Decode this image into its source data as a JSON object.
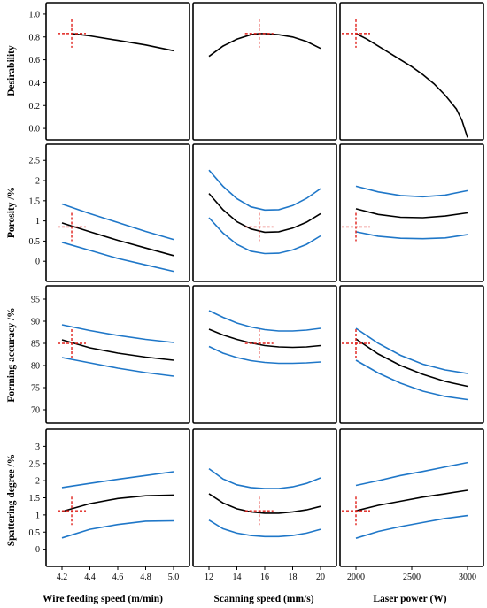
{
  "figure": {
    "x_titles": [
      "Wire feeding speed (m/min)",
      "Scanning speed (mm/s)",
      "Laser power (W)"
    ],
    "y_titles": [
      "Desirability",
      "Porosity /%",
      "Forming accuracy /%",
      "Spattering degree /%"
    ]
  },
  "chart_data": {
    "type": "line",
    "grid": false,
    "colors": {
      "fit": "#000000",
      "interval": "#1f77c8",
      "optimum": "#e0201b"
    },
    "columns": [
      {
        "xlabel": "Wire feeding speed (m/min)",
        "xlim": [
          4.2,
          5.0
        ],
        "xticks": [
          4.2,
          4.4,
          4.6,
          4.8,
          5.0
        ],
        "xtick_labels": [
          "4.2",
          "4.4",
          "4.6",
          "4.8",
          "5.0"
        ],
        "optimum_x": 4.27
      },
      {
        "xlabel": "Scanning speed (mm/s)",
        "xlim": [
          12,
          20
        ],
        "xticks": [
          12,
          14,
          16,
          18,
          20
        ],
        "xtick_labels": [
          "12",
          "14",
          "16",
          "18",
          "20"
        ],
        "optimum_x": 15.6
      },
      {
        "xlabel": "Laser power (W)",
        "xlim": [
          2000,
          3000
        ],
        "xticks": [
          2000,
          2500,
          3000
        ],
        "xtick_labels": [
          "2000",
          "2500",
          "3000"
        ],
        "optimum_x": 2000
      }
    ],
    "rows": [
      {
        "ylabel": "Desirability",
        "ylim": [
          -0.1,
          1.1
        ],
        "yticks": [
          0.0,
          0.2,
          0.4,
          0.6,
          0.8,
          1.0
        ],
        "ytick_labels": [
          "0.0",
          "0.2",
          "0.4",
          "0.6",
          "0.8",
          "1.0"
        ],
        "optimum_y": 0.83,
        "panels": [
          {
            "fit": {
              "x": [
                4.27,
                4.4,
                4.6,
                4.8,
                5.0
              ],
              "y": [
                0.83,
                0.81,
                0.77,
                0.73,
                0.68
              ]
            }
          },
          {
            "fit": {
              "x": [
                12,
                13,
                14,
                15,
                15.6,
                16,
                17,
                18,
                19,
                20
              ],
              "y": [
                0.63,
                0.72,
                0.78,
                0.82,
                0.83,
                0.83,
                0.82,
                0.8,
                0.76,
                0.7
              ]
            }
          },
          {
            "fit": {
              "x": [
                2000,
                2100,
                2200,
                2300,
                2400,
                2500,
                2600,
                2700,
                2800,
                2900,
                2950,
                3000
              ],
              "y": [
                0.83,
                0.78,
                0.72,
                0.66,
                0.6,
                0.54,
                0.47,
                0.39,
                0.29,
                0.17,
                0.07,
                -0.08
              ]
            }
          }
        ]
      },
      {
        "ylabel": "Porosity /%",
        "ylim": [
          -0.5,
          2.9
        ],
        "yticks": [
          0,
          0.5,
          1,
          1.5,
          2,
          2.5
        ],
        "ytick_labels": [
          "0",
          "0.5",
          "1",
          "1.5",
          "2",
          "2.5"
        ],
        "optimum_y": 0.85,
        "panels": [
          {
            "fit": {
              "x": [
                4.2,
                4.4,
                4.6,
                4.8,
                5.0
              ],
              "y": [
                0.95,
                0.73,
                0.52,
                0.33,
                0.14
              ]
            },
            "upper": {
              "x": [
                4.2,
                4.4,
                4.6,
                4.8,
                5.0
              ],
              "y": [
                1.42,
                1.18,
                0.96,
                0.74,
                0.54
              ]
            },
            "lower": {
              "x": [
                4.2,
                4.4,
                4.6,
                4.8,
                5.0
              ],
              "y": [
                0.47,
                0.27,
                0.07,
                -0.09,
                -0.25
              ]
            }
          },
          {
            "fit": {
              "x": [
                12,
                13,
                14,
                15,
                16,
                17,
                18,
                19,
                20
              ],
              "y": [
                1.68,
                1.28,
                0.98,
                0.8,
                0.72,
                0.73,
                0.82,
                0.97,
                1.18
              ]
            },
            "upper": {
              "x": [
                12,
                13,
                14,
                15,
                16,
                17,
                18,
                19,
                20
              ],
              "y": [
                2.26,
                1.86,
                1.55,
                1.35,
                1.27,
                1.28,
                1.38,
                1.56,
                1.8
              ]
            },
            "lower": {
              "x": [
                12,
                13,
                14,
                15,
                16,
                17,
                18,
                19,
                20
              ],
              "y": [
                1.08,
                0.7,
                0.42,
                0.25,
                0.19,
                0.2,
                0.28,
                0.42,
                0.63
              ]
            }
          },
          {
            "fit": {
              "x": [
                2000,
                2200,
                2400,
                2600,
                2800,
                3000
              ],
              "y": [
                1.3,
                1.16,
                1.09,
                1.08,
                1.12,
                1.2
              ]
            },
            "upper": {
              "x": [
                2000,
                2200,
                2400,
                2600,
                2800,
                3000
              ],
              "y": [
                1.86,
                1.72,
                1.63,
                1.6,
                1.64,
                1.75
              ]
            },
            "lower": {
              "x": [
                2000,
                2200,
                2400,
                2600,
                2800,
                3000
              ],
              "y": [
                0.73,
                0.62,
                0.57,
                0.56,
                0.58,
                0.66
              ]
            }
          }
        ]
      },
      {
        "ylabel": "Forming accuracy /%",
        "ylim": [
          67,
          98
        ],
        "yticks": [
          70,
          75,
          80,
          85,
          90,
          95
        ],
        "ytick_labels": [
          "70",
          "75",
          "80",
          "85",
          "90",
          "95"
        ],
        "optimum_y": 85,
        "panels": [
          {
            "fit": {
              "x": [
                4.2,
                4.4,
                4.6,
                4.8,
                5.0
              ],
              "y": [
                85.8,
                84.0,
                82.8,
                81.9,
                81.2
              ]
            },
            "upper": {
              "x": [
                4.2,
                4.4,
                4.6,
                4.8,
                5.0
              ],
              "y": [
                89.2,
                87.9,
                86.8,
                85.9,
                85.2
              ]
            },
            "lower": {
              "x": [
                4.2,
                4.4,
                4.6,
                4.8,
                5.0
              ],
              "y": [
                81.8,
                80.6,
                79.4,
                78.4,
                77.6
              ]
            }
          },
          {
            "fit": {
              "x": [
                12,
                13,
                14,
                15,
                16,
                17,
                18,
                19,
                20
              ],
              "y": [
                88.2,
                86.9,
                85.9,
                85.1,
                84.5,
                84.2,
                84.1,
                84.2,
                84.5
              ]
            },
            "upper": {
              "x": [
                12,
                13,
                14,
                15,
                16,
                17,
                18,
                19,
                20
              ],
              "y": [
                92.4,
                90.9,
                89.6,
                88.7,
                88.1,
                87.8,
                87.8,
                88.0,
                88.4
              ]
            },
            "lower": {
              "x": [
                12,
                13,
                14,
                15,
                16,
                17,
                18,
                19,
                20
              ],
              "y": [
                84.3,
                82.8,
                81.8,
                81.1,
                80.7,
                80.5,
                80.5,
                80.6,
                80.8
              ]
            }
          },
          {
            "fit": {
              "x": [
                2000,
                2200,
                2400,
                2600,
                2800,
                3000
              ],
              "y": [
                86.0,
                82.6,
                80.0,
                78.0,
                76.4,
                75.3
              ]
            },
            "upper": {
              "x": [
                2000,
                2200,
                2400,
                2600,
                2800,
                3000
              ],
              "y": [
                88.4,
                85.0,
                82.3,
                80.3,
                79.0,
                78.2
              ]
            },
            "lower": {
              "x": [
                2000,
                2200,
                2400,
                2600,
                2800,
                3000
              ],
              "y": [
                81.2,
                78.3,
                76.0,
                74.2,
                73.0,
                72.3
              ]
            }
          }
        ]
      },
      {
        "ylabel": "Spattering degree /%",
        "ylim": [
          -0.5,
          3.5
        ],
        "yticks": [
          0,
          0.5,
          1,
          1.5,
          2,
          2.5,
          3
        ],
        "ytick_labels": [
          "0",
          "0.5",
          "1",
          "1.5",
          "2",
          "2.5",
          "3"
        ],
        "optimum_y": 1.12,
        "panels": [
          {
            "fit": {
              "x": [
                4.2,
                4.4,
                4.6,
                4.8,
                5.0
              ],
              "y": [
                1.1,
                1.33,
                1.48,
                1.56,
                1.58
              ]
            },
            "upper": {
              "x": [
                4.2,
                4.4,
                4.6,
                4.8,
                5.0
              ],
              "y": [
                1.8,
                1.92,
                2.04,
                2.15,
                2.26
              ]
            },
            "lower": {
              "x": [
                4.2,
                4.4,
                4.6,
                4.8,
                5.0
              ],
              "y": [
                0.33,
                0.58,
                0.72,
                0.82,
                0.83
              ]
            }
          },
          {
            "fit": {
              "x": [
                12,
                13,
                14,
                15,
                16,
                17,
                18,
                19,
                20
              ],
              "y": [
                1.62,
                1.35,
                1.18,
                1.09,
                1.05,
                1.05,
                1.09,
                1.15,
                1.25
              ]
            },
            "upper": {
              "x": [
                12,
                13,
                14,
                15,
                16,
                17,
                18,
                19,
                20
              ],
              "y": [
                2.35,
                2.05,
                1.88,
                1.8,
                1.77,
                1.77,
                1.82,
                1.92,
                2.08
              ]
            },
            "lower": {
              "x": [
                12,
                13,
                14,
                15,
                16,
                17,
                18,
                19,
                20
              ],
              "y": [
                0.85,
                0.6,
                0.47,
                0.4,
                0.37,
                0.37,
                0.4,
                0.47,
                0.58
              ]
            }
          },
          {
            "fit": {
              "x": [
                2000,
                2200,
                2400,
                2600,
                2800,
                3000
              ],
              "y": [
                1.12,
                1.28,
                1.4,
                1.52,
                1.62,
                1.72
              ]
            },
            "upper": {
              "x": [
                2000,
                2200,
                2400,
                2600,
                2800,
                3000
              ],
              "y": [
                1.86,
                2.0,
                2.15,
                2.27,
                2.4,
                2.53
              ]
            },
            "lower": {
              "x": [
                2000,
                2200,
                2400,
                2600,
                2800,
                3000
              ],
              "y": [
                0.32,
                0.52,
                0.66,
                0.78,
                0.9,
                0.98
              ]
            }
          }
        ]
      }
    ]
  }
}
